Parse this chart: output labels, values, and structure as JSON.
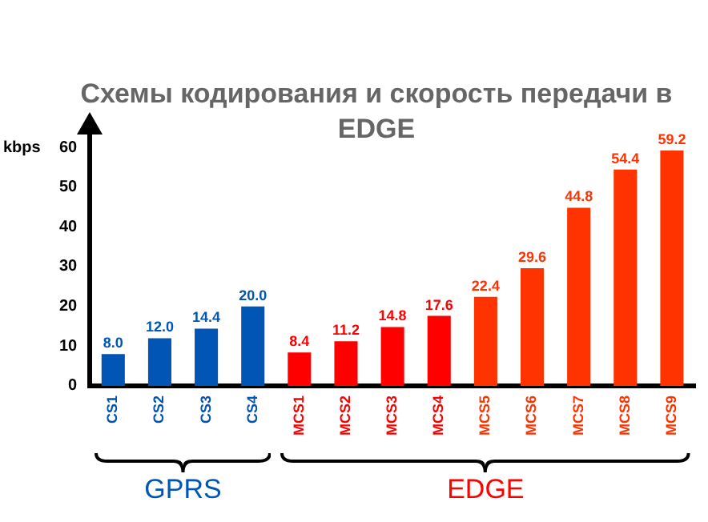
{
  "chart_data": {
    "type": "bar",
    "title": "Схемы кодирования и скорость передачи в EDGE",
    "ylabel": "kbps",
    "categories": [
      "CS1",
      "CS2",
      "CS3",
      "CS4",
      "MCS1",
      "MCS2",
      "MCS3",
      "MCS4",
      "MCS5",
      "MCS6",
      "MCS7",
      "MCS8",
      "MCS9"
    ],
    "series": [
      {
        "name": "GPRS",
        "color": "#0055b5",
        "colors": [
          "#0055b5",
          "#0055b5",
          "#0055b5",
          "#0055b5",
          null,
          null,
          null,
          null,
          null,
          null,
          null,
          null,
          null
        ],
        "values": [
          8.0,
          12.0,
          14.4,
          20.0,
          null,
          null,
          null,
          null,
          null,
          null,
          null,
          null,
          null
        ],
        "value_labels": [
          "8.0",
          "12.0",
          "14.4",
          "20.0",
          null,
          null,
          null,
          null,
          null,
          null,
          null,
          null,
          null
        ]
      },
      {
        "name": "EDGE",
        "color": "#ff0000",
        "colors": [
          null,
          null,
          null,
          null,
          "#ff0000",
          "#ff0000",
          "#ff0000",
          "#ff0000",
          "#ff3300",
          "#ff3300",
          "#ff3300",
          "#ff3300",
          "#ff3300"
        ],
        "values": [
          null,
          null,
          null,
          null,
          8.4,
          11.2,
          14.8,
          17.6,
          22.4,
          29.6,
          44.8,
          54.4,
          59.2
        ],
        "value_labels": [
          null,
          null,
          null,
          null,
          "8.4",
          "11.2",
          "14.8",
          "17.6",
          "22.4",
          "29.6",
          "44.8",
          "54.4",
          "59.2"
        ]
      }
    ],
    "ylim": [
      0,
      60
    ],
    "yticks": [
      0,
      10,
      20,
      30,
      40,
      50,
      60
    ],
    "grid": false,
    "legend": false
  }
}
